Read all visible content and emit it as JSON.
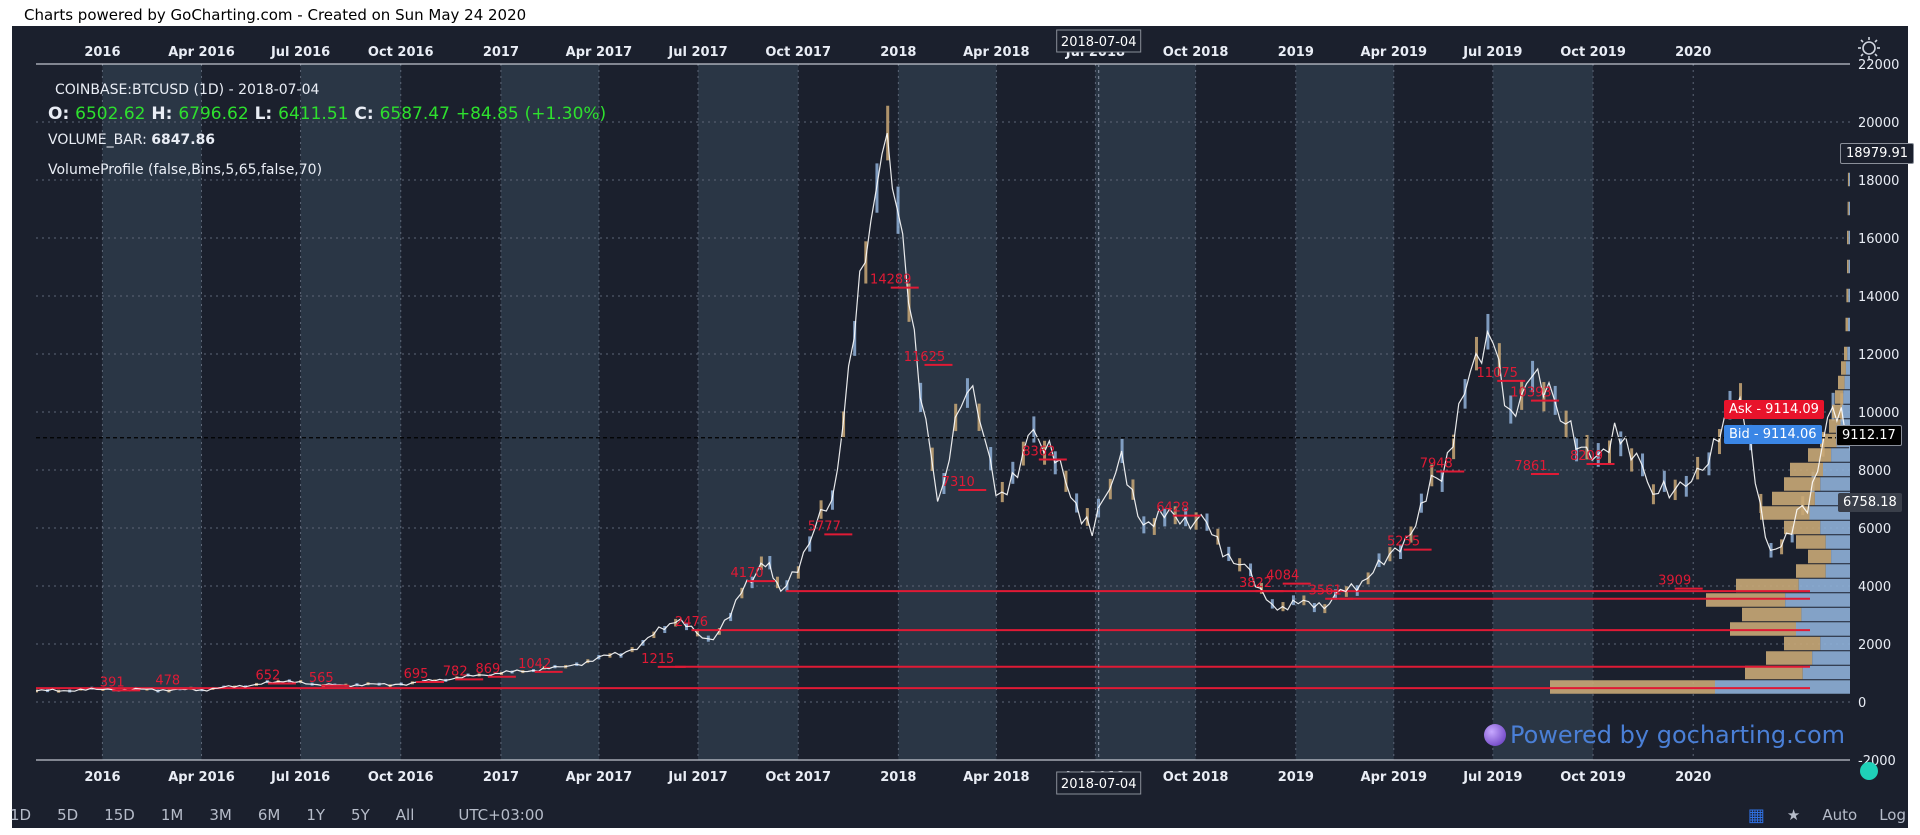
{
  "credit": "Charts powered by GoCharting.com - Created on Sun May 24 2020",
  "legend": {
    "symbol": "COINBASE:BTCUSD (1D) - 2018-07-04",
    "o_label": "O:",
    "o": "6502.62",
    "h_label": "H:",
    "h": "6796.62",
    "l_label": "L:",
    "l": "6411.51",
    "c_label": "C:",
    "c": "6587.47",
    "change": "+84.85",
    "change_pct": "(+1.30%)",
    "volume_label": "VOLUME_BAR:",
    "volume": "6847.86",
    "study": "VolumeProfile (false,Bins,5,65,false,70)"
  },
  "crosshair_date": "2018-07-04",
  "badges": {
    "ask": "Ask - 9114.09",
    "bid": "Bid - 9114.06",
    "last": "9112.17",
    "max": "18979.91",
    "cursor_price": "6758.18"
  },
  "watermark": "Powered by gocharting.com",
  "toolbar": {
    "ranges": [
      "1D",
      "5D",
      "15D",
      "1M",
      "3M",
      "6M",
      "1Y",
      "5Y",
      "All"
    ],
    "timezone": "UTC+03:00",
    "auto": "Auto",
    "log": "Log",
    "star": "★",
    "grid": "▦"
  },
  "colors": {
    "background": "#1b202d",
    "band": "#2a3645",
    "price": "#ffffff",
    "volume_up": "#c9a877",
    "volume_down": "#8fb0d8",
    "poc": "#e01a35",
    "ask": "#e8132b",
    "bid": "#3a86e6",
    "up": "#2ee02e"
  },
  "chart_data": {
    "type": "line",
    "title": "COINBASE:BTCUSD (1D)",
    "xlabel": "",
    "ylabel": "",
    "x_ticks": [
      "2016",
      "Apr 2016",
      "Jul 2016",
      "Oct 2016",
      "2017",
      "Apr 2017",
      "Jul 2017",
      "Oct 2017",
      "2018",
      "Apr 2018",
      "Jul 2018",
      "Oct 2018",
      "2019",
      "Apr 2019",
      "Jul 2019",
      "Oct 2019",
      "2020"
    ],
    "y_ticks": [
      -2000,
      0,
      2000,
      4000,
      6000,
      8000,
      10000,
      12000,
      14000,
      16000,
      18000,
      20000,
      22000
    ],
    "ylim": [
      -2000,
      22000
    ],
    "x_range": [
      "2015-11-01",
      "2020-05-24"
    ],
    "grid": true,
    "series": [
      {
        "x": [
          "2015-11-01",
          "2016-01-01",
          "2016-04-01",
          "2016-06-15",
          "2016-08-01",
          "2016-10-01",
          "2017-01-01",
          "2017-03-01",
          "2017-05-01",
          "2017-06-10",
          "2017-07-15",
          "2017-08-15",
          "2017-09-01",
          "2017-09-15",
          "2017-11-01",
          "2017-12-17",
          "2018-01-05",
          "2018-02-06",
          "2018-03-05",
          "2018-04-06",
          "2018-05-05",
          "2018-06-28",
          "2018-07-25",
          "2018-08-14",
          "2018-10-01",
          "2018-11-20",
          "2018-12-15",
          "2019-02-01",
          "2019-04-02",
          "2019-05-15",
          "2019-06-26",
          "2019-07-17",
          "2019-08-06",
          "2019-09-01",
          "2019-09-25",
          "2019-10-26",
          "2019-11-25",
          "2019-12-20",
          "2020-01-15",
          "2020-02-13",
          "2020-03-12",
          "2020-04-15",
          "2020-05-08",
          "2020-05-24"
        ],
        "y": [
          380,
          430,
          420,
          700,
          580,
          615,
          1000,
          1200,
          1800,
          2800,
          2100,
          4200,
          4800,
          3700,
          7000,
          19500,
          15500,
          7000,
          11000,
          6900,
          9600,
          5900,
          8200,
          6300,
          6400,
          4300,
          3300,
          3450,
          5000,
          8000,
          12900,
          9500,
          11900,
          9700,
          8300,
          9500,
          7100,
          7200,
          8800,
          10300,
          5000,
          7000,
          9900,
          9110
        ]
      }
    ],
    "volume_profile_pocs": [
      {
        "label": "391",
        "price": 400
      },
      {
        "label": "478",
        "price": 470
      },
      {
        "label": "652",
        "price": 640
      },
      {
        "label": "565",
        "price": 560
      },
      {
        "label": "695",
        "price": 690
      },
      {
        "label": "782",
        "price": 780
      },
      {
        "label": "869",
        "price": 870
      },
      {
        "label": "1042",
        "price": 1040
      },
      {
        "label": "1215",
        "price": 1210
      },
      {
        "label": "2476",
        "price": 2480
      },
      {
        "label": "4170",
        "price": 4170
      },
      {
        "label": "5777",
        "price": 5780
      },
      {
        "label": "14289",
        "price": 14290
      },
      {
        "label": "11625",
        "price": 11625
      },
      {
        "label": "7310",
        "price": 7310
      },
      {
        "label": "8362",
        "price": 8362
      },
      {
        "label": "6428",
        "price": 6428
      },
      {
        "label": "3822",
        "price": 3822
      },
      {
        "label": "4084",
        "price": 4084
      },
      {
        "label": "3561",
        "price": 3561
      },
      {
        "label": "5255",
        "price": 5255
      },
      {
        "label": "7948",
        "price": 7948
      },
      {
        "label": "11075",
        "price": 11075
      },
      {
        "label": "10393",
        "price": 10393
      },
      {
        "label": "7861",
        "price": 7861
      },
      {
        "label": "8209",
        "price": 8209
      },
      {
        "label": "3909",
        "price": 3909
      }
    ],
    "right_profile": [
      {
        "price": 500,
        "volume": 100
      },
      {
        "price": 1000,
        "volume": 35
      },
      {
        "price": 1500,
        "volume": 28
      },
      {
        "price": 2000,
        "volume": 22
      },
      {
        "price": 2500,
        "volume": 40
      },
      {
        "price": 3000,
        "volume": 36
      },
      {
        "price": 3500,
        "volume": 48
      },
      {
        "price": 4000,
        "volume": 38
      },
      {
        "price": 4500,
        "volume": 18
      },
      {
        "price": 5000,
        "volume": 14
      },
      {
        "price": 5500,
        "volume": 18
      },
      {
        "price": 6000,
        "volume": 22
      },
      {
        "price": 6500,
        "volume": 30
      },
      {
        "price": 7000,
        "volume": 26
      },
      {
        "price": 7500,
        "volume": 22
      },
      {
        "price": 8000,
        "volume": 20
      },
      {
        "price": 8500,
        "volume": 14
      },
      {
        "price": 9000,
        "volume": 10
      },
      {
        "price": 9500,
        "volume": 7
      },
      {
        "price": 10000,
        "volume": 6
      },
      {
        "price": 10500,
        "volume": 5
      },
      {
        "price": 11000,
        "volume": 4
      },
      {
        "price": 11500,
        "volume": 3
      },
      {
        "price": 12000,
        "volume": 2
      },
      {
        "price": 13000,
        "volume": 1.5
      },
      {
        "price": 14000,
        "volume": 1.2
      },
      {
        "price": 15000,
        "volume": 1
      },
      {
        "price": 16000,
        "volume": 1
      },
      {
        "price": 17000,
        "volume": 0.8
      },
      {
        "price": 18000,
        "volume": 0.7
      },
      {
        "price": 19000,
        "volume": 0.6
      }
    ],
    "poc_lines": [
      {
        "price": 480,
        "from": "2015-11-01"
      },
      {
        "price": 1215,
        "from": "2017-06-10"
      },
      {
        "price": 2480,
        "from": "2017-07-20"
      },
      {
        "price": 3822,
        "from": "2017-09-20"
      },
      {
        "price": 3561,
        "from": "2019-02-10"
      }
    ],
    "crosshair_price": 9112
  }
}
